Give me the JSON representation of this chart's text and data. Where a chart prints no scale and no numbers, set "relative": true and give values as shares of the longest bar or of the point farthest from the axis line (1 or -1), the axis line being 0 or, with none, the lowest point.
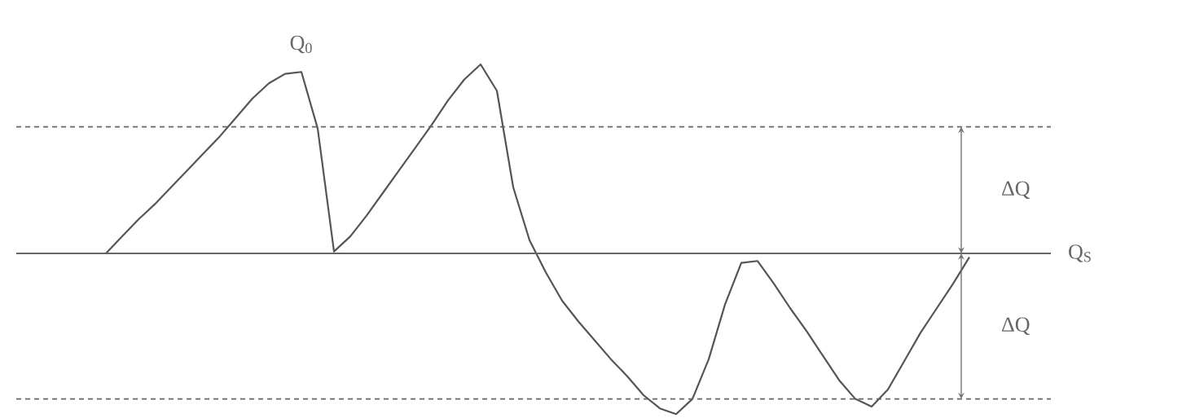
{
  "chart_data": {
    "type": "line",
    "relative": true,
    "color": "#555555",
    "marker": "none",
    "line_style": "solid",
    "categories": [
      null,
      null,
      null,
      null,
      null,
      null,
      null,
      null,
      null,
      null,
      null,
      null,
      null,
      null,
      null,
      null,
      null,
      null,
      null,
      null,
      null,
      null,
      null,
      null,
      null,
      null,
      null,
      null,
      null,
      null,
      null,
      null,
      null,
      null,
      null,
      null,
      null,
      null,
      null,
      null,
      null,
      null,
      null,
      null,
      null,
      null,
      null,
      null,
      null,
      null,
      null,
      null,
      null,
      null
    ],
    "values": [
      0,
      0.09,
      0.18,
      0.26,
      0.35,
      0.44,
      0.53,
      0.62,
      0.72,
      0.82,
      0.9,
      0.95,
      0.96,
      0.66,
      0.01,
      0.09,
      0.2,
      0.32,
      0.44,
      0.56,
      0.68,
      0.81,
      0.92,
      1.0,
      0.86,
      0.35,
      0.07,
      -0.1,
      -0.25,
      -0.36,
      -0.46,
      -0.56,
      -0.65,
      -0.75,
      -0.82,
      -0.85,
      -0.77,
      -0.56,
      -0.27,
      -0.05,
      -0.04,
      -0.16,
      -0.29,
      -0.41,
      -0.54,
      -0.67,
      -0.77,
      -0.81,
      -0.72,
      -0.57,
      -0.42,
      -0.29,
      -0.16,
      -0.02
    ],
    "ref_lines": [
      {
        "axis": "y",
        "value": 0,
        "label": "Q$_{S}$",
        "line_style": "solid",
        "color": "#666666"
      },
      {
        "axis": "y",
        "value": 0.67,
        "line_style": "dotted",
        "color": "#666666"
      },
      {
        "axis": "y",
        "value": -0.77,
        "line_style": "dotted",
        "color": "#666666"
      }
    ],
    "annotations": [
      "Q$_{0}$",
      "ΔQ",
      "ΔQ"
    ]
  }
}
